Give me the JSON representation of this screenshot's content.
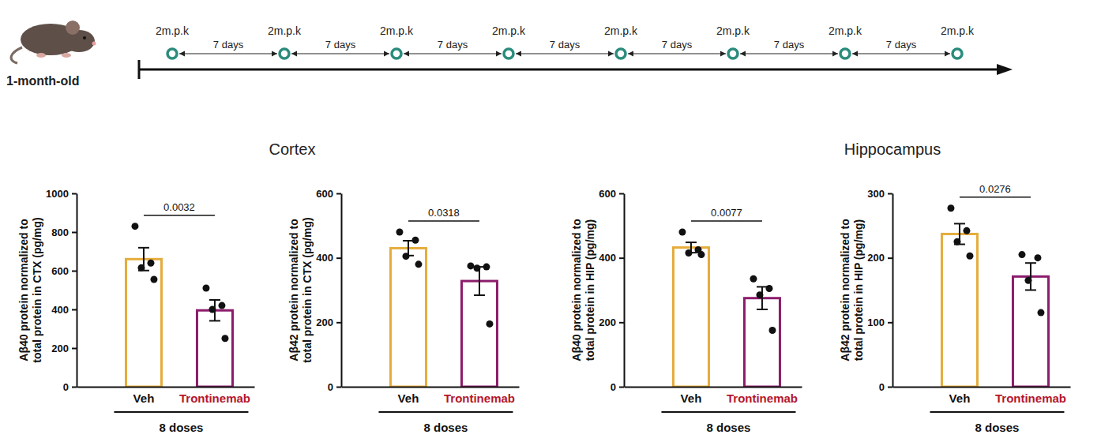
{
  "chart_data": [
    {
      "type": "bar",
      "ylabel": [
        "Aβ40 protein normalized to",
        "total protein in CTX (pg/mg)"
      ],
      "categories": [
        "Veh",
        "Trontinemab"
      ],
      "values": [
        660,
        395
      ],
      "errors": [
        59,
        54
      ],
      "points": [
        [
          830,
          640,
          615,
          555
        ],
        [
          510,
          420,
          400,
          250
        ]
      ],
      "colors": [
        "#e5ac3c",
        "#8c1c6c"
      ],
      "ylim": [
        0,
        1000
      ],
      "yticks": [
        0,
        200,
        400,
        600,
        800,
        1000
      ],
      "annotations": [
        "0.0032"
      ],
      "group_label": "8 doses"
    },
    {
      "type": "bar",
      "ylabel": [
        "Aβ42 protein normalized to",
        "total protein in CTX (pg/mg)"
      ],
      "categories": [
        "Veh",
        "Trontinemab"
      ],
      "values": [
        430,
        328
      ],
      "errors": [
        23,
        44
      ],
      "points": [
        [
          480,
          455,
          405,
          380
        ],
        [
          375,
          372,
          368,
          195
        ]
      ],
      "colors": [
        "#e5ac3c",
        "#8c1c6c"
      ],
      "ylim": [
        0,
        600
      ],
      "yticks": [
        0,
        200,
        400,
        600
      ],
      "annotations": [
        "0.0318"
      ],
      "group_label": "8 doses"
    },
    {
      "type": "bar",
      "ylabel": [
        "Aβ40 protein normalized to",
        "total protein in HIP (pg/mg)"
      ],
      "categories": [
        "Veh",
        "Trontinemab"
      ],
      "values": [
        432,
        275
      ],
      "errors": [
        16,
        35
      ],
      "points": [
        [
          480,
          425,
          415,
          410
        ],
        [
          335,
          305,
          285,
          175
        ]
      ],
      "colors": [
        "#e5ac3c",
        "#8c1c6c"
      ],
      "ylim": [
        0,
        600
      ],
      "yticks": [
        0,
        200,
        400,
        600
      ],
      "annotations": [
        "0.0077"
      ],
      "group_label": "8 doses"
    },
    {
      "type": "bar",
      "ylabel": [
        "Aβ42 protein normalized to",
        "total protein in HIP (pg/mg)"
      ],
      "categories": [
        "Veh",
        "Trontinemab"
      ],
      "values": [
        237,
        171
      ],
      "errors": [
        16,
        21
      ],
      "points": [
        [
          277,
          242,
          225,
          203
        ],
        [
          205,
          200,
          165,
          115
        ]
      ],
      "colors": [
        "#e5ac3c",
        "#8c1c6c"
      ],
      "ylim": [
        0,
        300
      ],
      "yticks": [
        0,
        100,
        200,
        300
      ],
      "annotations": [
        "0.0276"
      ],
      "group_label": "8 doses"
    }
  ],
  "sections": [
    {
      "title": "Cortex"
    },
    {
      "title": "Hippocampus"
    }
  ],
  "timeline": {
    "subject_label": "1-month-old",
    "events": [
      "2m.p.k",
      "2m.p.k",
      "2m.p.k",
      "2m.p.k",
      "2m.p.k",
      "2m.p.k",
      "2m.p.k",
      "2m.p.k"
    ],
    "intervals": [
      "7 days",
      "7 days",
      "7 days",
      "7 days",
      "7 days",
      "7 days",
      "7 days"
    ]
  }
}
